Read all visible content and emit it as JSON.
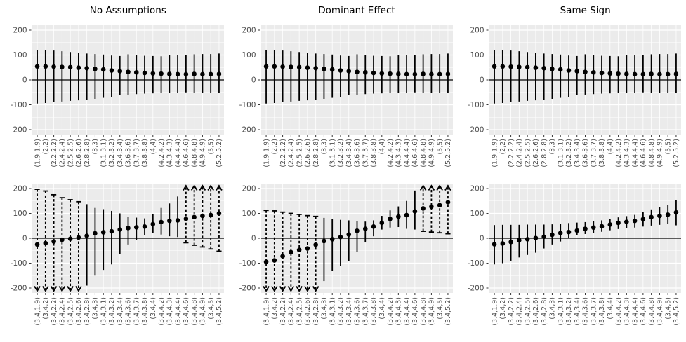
{
  "figure": {
    "columns": [
      {
        "title": "No Assumptions"
      },
      {
        "title": "Dominant Effect"
      },
      {
        "title": "Same Sign"
      }
    ],
    "y_axis": {
      "major_ticks": [
        200,
        100,
        0,
        -100,
        -200
      ],
      "minor_ticks": [
        150,
        50,
        -50,
        -150
      ],
      "range": [
        -220,
        220
      ]
    },
    "colors": {
      "panel_bg": "#EBEBEB",
      "grid": "#FFFFFF",
      "ink": "#000000",
      "axis_text": "#4D4D4D",
      "tick_mark": "#333333"
    }
  },
  "chart_data": [
    {
      "panel": "top-0",
      "row": "top",
      "col": 0,
      "type": "errorbar",
      "facet": "No Assumptions",
      "categories": [
        "(1.9,1.9)",
        "(2,2)",
        "(2.2,2.2)",
        "(2.4,2.4)",
        "(2.5,2.5)",
        "(2.6,2.6)",
        "(2.8,2.8)",
        "(3,3)",
        "(3.1,3.1)",
        "(3.2,3.2)",
        "(3.4,3.4)",
        "(3.6,3.6)",
        "(3.7,3.7)",
        "(3.8,3.8)",
        "(4,4)",
        "(4.2,4.2)",
        "(4.3,4.3)",
        "(4.4,4.4)",
        "(4.6,4.6)",
        "(4.8,4.8)",
        "(4.9,4.9)",
        "(5,5)",
        "(5.2,5.2)"
      ],
      "estimates": [
        54,
        54,
        53,
        52,
        51,
        49,
        47,
        44,
        42,
        38,
        35,
        32,
        30,
        28,
        26,
        25,
        24,
        23,
        23,
        24,
        23,
        23,
        24
      ],
      "upper": [
        120,
        120,
        118,
        115,
        112,
        109,
        106,
        104,
        102,
        98,
        96,
        103,
        100,
        97,
        96,
        95,
        100,
        99,
        101,
        103,
        104,
        104,
        106
      ],
      "lower": [
        -95,
        -93,
        -90,
        -87,
        -84,
        -82,
        -79,
        -76,
        -72,
        -68,
        -62,
        -59,
        -57,
        -55,
        -54,
        -53,
        -52,
        -51,
        -50,
        -51,
        -51,
        -52,
        -52
      ],
      "styles": [
        "s",
        "s",
        "s",
        "s",
        "s",
        "s",
        "s",
        "s",
        "s",
        "s",
        "s",
        "s",
        "s",
        "s",
        "s",
        "s",
        "s",
        "s",
        "s",
        "s",
        "s",
        "s",
        "s"
      ]
    },
    {
      "panel": "top-1",
      "row": "top",
      "col": 1,
      "type": "errorbar",
      "facet": "Dominant Effect",
      "categories": [
        "(1.9,1.9)",
        "(2,2)",
        "(2.2,2.2)",
        "(2.4,2.4)",
        "(2.5,2.5)",
        "(2.6,2.6)",
        "(2.8,2.8)",
        "(3,3)",
        "(3.1,3.1)",
        "(3.2,3.2)",
        "(3.4,3.4)",
        "(3.6,3.6)",
        "(3.7,3.7)",
        "(3.8,3.8)",
        "(4,4)",
        "(4.2,4.2)",
        "(4.3,4.3)",
        "(4.4,4.4)",
        "(4.6,4.6)",
        "(4.8,4.8)",
        "(4.9,4.9)",
        "(5,5)",
        "(5.2,5.2)"
      ],
      "estimates": [
        54,
        54,
        53,
        52,
        51,
        49,
        47,
        44,
        42,
        38,
        35,
        32,
        30,
        28,
        26,
        25,
        24,
        23,
        23,
        24,
        23,
        23,
        24
      ],
      "upper": [
        120,
        120,
        118,
        115,
        112,
        109,
        106,
        104,
        102,
        98,
        96,
        103,
        100,
        97,
        96,
        95,
        100,
        99,
        101,
        103,
        104,
        104,
        106
      ],
      "lower": [
        -95,
        -93,
        -90,
        -87,
        -84,
        -82,
        -79,
        -76,
        -72,
        -68,
        -62,
        -59,
        -57,
        -55,
        -54,
        -53,
        -52,
        -51,
        -50,
        -51,
        -51,
        -52,
        -52
      ],
      "styles": [
        "s",
        "s",
        "s",
        "s",
        "s",
        "s",
        "s",
        "s",
        "s",
        "s",
        "s",
        "s",
        "s",
        "s",
        "s",
        "s",
        "s",
        "s",
        "s",
        "s",
        "s",
        "s",
        "s"
      ]
    },
    {
      "panel": "top-2",
      "row": "top",
      "col": 2,
      "type": "errorbar",
      "facet": "Same Sign",
      "categories": [
        "(1.9,1.9)",
        "(2,2)",
        "(2.2,2.2)",
        "(2.4,2.4)",
        "(2.5,2.5)",
        "(2.6,2.6)",
        "(2.8,2.8)",
        "(3,3)",
        "(3.1,3.1)",
        "(3.2,3.2)",
        "(3.4,3.4)",
        "(3.6,3.6)",
        "(3.7,3.7)",
        "(3.8,3.8)",
        "(4,4)",
        "(4.2,4.2)",
        "(4.3,4.3)",
        "(4.4,4.4)",
        "(4.6,4.6)",
        "(4.8,4.8)",
        "(4.9,4.9)",
        "(5,5)",
        "(5.2,5.2)"
      ],
      "estimates": [
        54,
        54,
        53,
        52,
        51,
        49,
        47,
        44,
        42,
        38,
        35,
        32,
        30,
        28,
        26,
        25,
        24,
        23,
        23,
        24,
        23,
        23,
        24
      ],
      "upper": [
        120,
        120,
        118,
        115,
        112,
        109,
        106,
        104,
        102,
        98,
        96,
        103,
        100,
        97,
        96,
        95,
        100,
        99,
        101,
        103,
        104,
        104,
        106
      ],
      "lower": [
        -95,
        -93,
        -90,
        -87,
        -84,
        -82,
        -79,
        -76,
        -72,
        -68,
        -62,
        -59,
        -57,
        -55,
        -54,
        -53,
        -52,
        -51,
        -50,
        -51,
        -51,
        -52,
        -52
      ],
      "styles": [
        "s",
        "s",
        "s",
        "s",
        "s",
        "s",
        "s",
        "s",
        "s",
        "s",
        "s",
        "s",
        "s",
        "s",
        "s",
        "s",
        "s",
        "s",
        "s",
        "s",
        "s",
        "s",
        "s"
      ]
    },
    {
      "panel": "bottom-0",
      "row": "bottom",
      "col": 0,
      "type": "errorbar",
      "facet": "No Assumptions",
      "categories": [
        "(3.4,1.9)",
        "(3.4,2)",
        "(3.4,2.2)",
        "(3.4,2.4)",
        "(3.4,2.5)",
        "(3.4,2.6)",
        "(3.4,2.8)",
        "(3.4,3)",
        "(3.4,3.1)",
        "(3.4,3.2)",
        "(3.4,3.4)",
        "(3.4,3.6)",
        "(3.4,3.7)",
        "(3.4,3.8)",
        "(3.4,4)",
        "(3.4,4.2)",
        "(3.4,4.3)",
        "(3.4,4.4)",
        "(3.4,4.6)",
        "(3.4,4.8)",
        "(3.4,4.9)",
        "(3.4,5)",
        "(3.4,5.2)"
      ],
      "estimates": [
        -25,
        -20,
        -13,
        -6,
        -2,
        3,
        10,
        20,
        24,
        28,
        35,
        41,
        44,
        47,
        57,
        65,
        70,
        72,
        78,
        85,
        90,
        93,
        100
      ],
      "upper": [
        197,
        190,
        175,
        163,
        155,
        147,
        137,
        122,
        117,
        110,
        100,
        87,
        83,
        80,
        97,
        122,
        140,
        168,
        220,
        220,
        220,
        220,
        220
      ],
      "lower": [
        -220,
        -220,
        -220,
        -220,
        -220,
        -220,
        -190,
        -150,
        -127,
        -105,
        -64,
        -25,
        -8,
        12,
        20,
        15,
        8,
        5,
        -18,
        -28,
        -35,
        -43,
        -52
      ],
      "styles": [
        "d",
        "d",
        "d",
        "d",
        "d",
        "d",
        "s",
        "s",
        "s",
        "s",
        "s",
        "s",
        "s",
        "s",
        "s",
        "s",
        "s",
        "s",
        "u",
        "u",
        "u",
        "u",
        "u"
      ]
    },
    {
      "panel": "bottom-1",
      "row": "bottom",
      "col": 1,
      "type": "errorbar",
      "facet": "Dominant Effect",
      "categories": [
        "(3.4,1.9)",
        "(3.4,2)",
        "(3.4,2.2)",
        "(3.4,2.4)",
        "(3.4,2.5)",
        "(3.4,2.6)",
        "(3.4,2.8)",
        "(3.4,3)",
        "(3.4,3.1)",
        "(3.4,3.2)",
        "(3.4,3.4)",
        "(3.4,3.6)",
        "(3.4,3.7)",
        "(3.4,3.8)",
        "(3.4,4)",
        "(3.4,4.2)",
        "(3.4,4.3)",
        "(3.4,4.4)",
        "(3.4,4.6)",
        "(3.4,4.8)",
        "(3.4,4.9)",
        "(3.4,5)",
        "(3.4,5.2)"
      ],
      "estimates": [
        -95,
        -89,
        -72,
        -56,
        -47,
        -41,
        -26,
        -11,
        -4,
        5,
        15,
        30,
        38,
        47,
        62,
        78,
        87,
        93,
        108,
        120,
        127,
        133,
        145
      ],
      "upper": [
        112,
        110,
        105,
        100,
        96,
        91,
        88,
        82,
        78,
        74,
        72,
        68,
        67,
        72,
        90,
        112,
        128,
        150,
        192,
        220,
        220,
        220,
        220
      ],
      "lower": [
        -220,
        -220,
        -220,
        -220,
        -220,
        -220,
        -220,
        -172,
        -130,
        -112,
        -93,
        -55,
        -17,
        8,
        35,
        43,
        45,
        38,
        35,
        28,
        25,
        22,
        18
      ],
      "styles": [
        "d",
        "d",
        "d",
        "d",
        "d",
        "d",
        "d",
        "s",
        "s",
        "s",
        "s",
        "s",
        "s",
        "s",
        "s",
        "s",
        "s",
        "s",
        "s",
        "u",
        "u",
        "u",
        "u"
      ]
    },
    {
      "panel": "bottom-2",
      "row": "bottom",
      "col": 2,
      "type": "errorbar",
      "facet": "Same Sign",
      "categories": [
        "(3.4,1.9)",
        "(3.4,2)",
        "(3.4,2.2)",
        "(3.4,2.4)",
        "(3.4,2.5)",
        "(3.4,2.6)",
        "(3.4,2.8)",
        "(3.4,3)",
        "(3.4,3.1)",
        "(3.4,3.2)",
        "(3.4,3.4)",
        "(3.4,3.6)",
        "(3.4,3.7)",
        "(3.4,3.8)",
        "(3.4,4)",
        "(3.4,4.2)",
        "(3.4,4.3)",
        "(3.4,4.4)",
        "(3.4,4.6)",
        "(3.4,4.8)",
        "(3.4,4.9)",
        "(3.4,5)",
        "(3.4,5.2)"
      ],
      "estimates": [
        -24,
        -21,
        -15,
        -8,
        -4,
        1,
        6,
        14,
        21,
        25,
        31,
        38,
        43,
        48,
        55,
        62,
        66,
        70,
        77,
        85,
        90,
        95,
        104
      ],
      "upper": [
        53,
        54,
        54,
        54,
        55,
        55,
        55,
        56,
        58,
        61,
        63,
        65,
        68,
        72,
        78,
        84,
        89,
        94,
        106,
        116,
        126,
        134,
        154
      ],
      "lower": [
        -105,
        -100,
        -90,
        -77,
        -67,
        -58,
        -41,
        -25,
        -13,
        0,
        12,
        17,
        21,
        26,
        32,
        37,
        40,
        43,
        47,
        51,
        54,
        57,
        52
      ],
      "styles": [
        "s",
        "s",
        "s",
        "s",
        "s",
        "s",
        "s",
        "s",
        "s",
        "s",
        "s",
        "s",
        "s",
        "s",
        "s",
        "s",
        "s",
        "s",
        "s",
        "s",
        "s",
        "s",
        "s"
      ]
    }
  ]
}
